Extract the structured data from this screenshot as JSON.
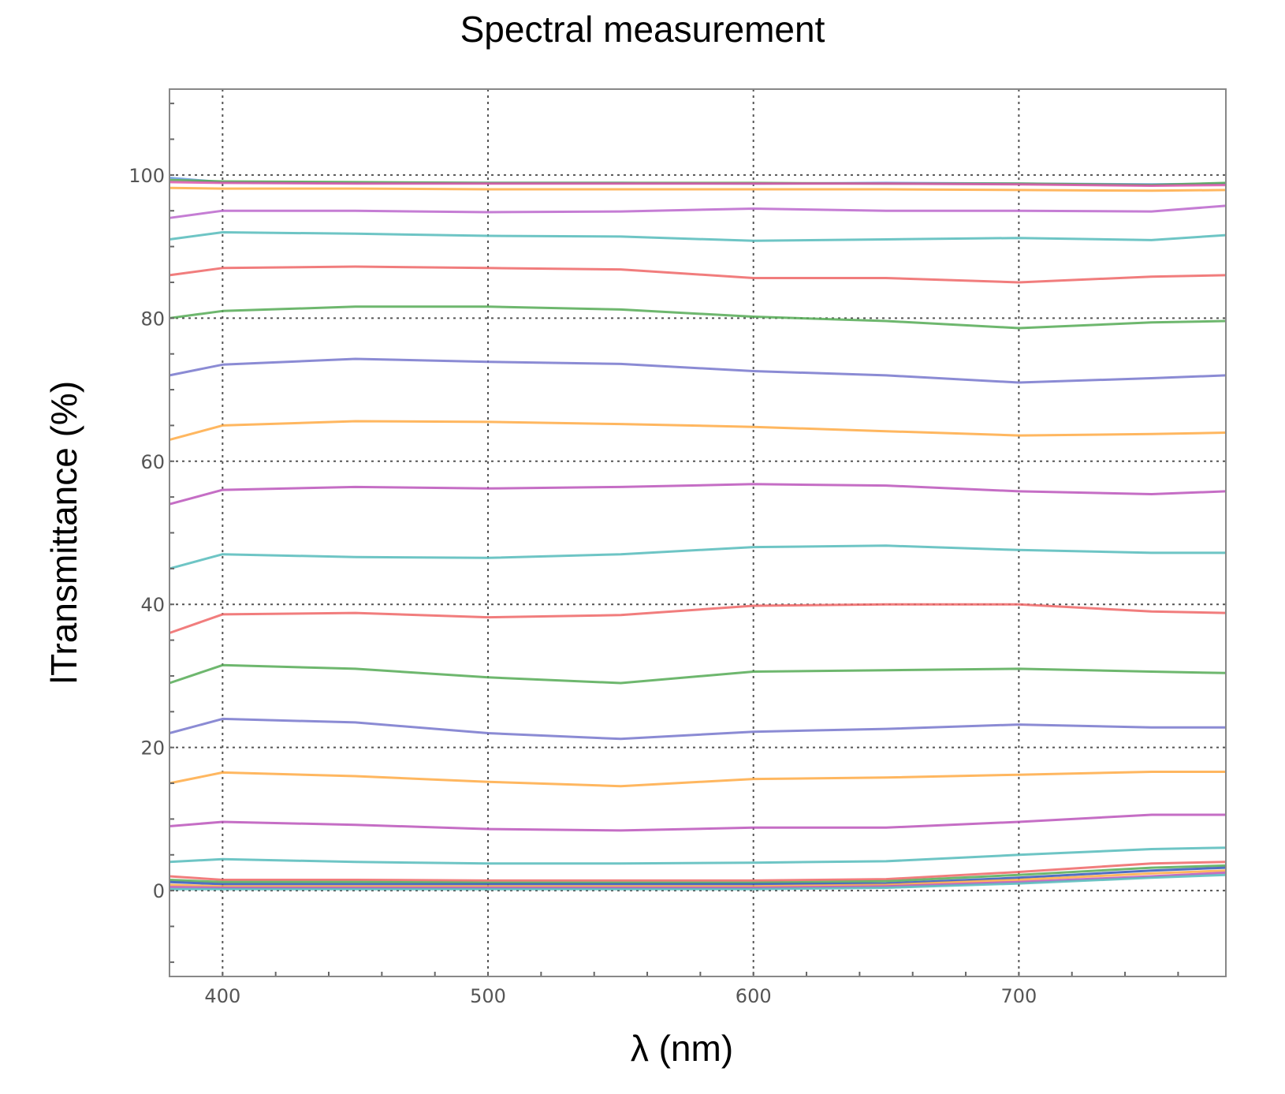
{
  "chart_data": {
    "type": "line",
    "title": "Spectral measurement",
    "xlabel": "λ (nm)",
    "ylabel": "lTransmittance (%)",
    "xlim": [
      380,
      778
    ],
    "ylim": [
      -12,
      112
    ],
    "xticks": [
      400,
      500,
      600,
      700
    ],
    "yticks": [
      0,
      20,
      40,
      60,
      80,
      100
    ],
    "grid": true,
    "x": [
      380,
      400,
      450,
      500,
      550,
      600,
      650,
      700,
      750,
      778
    ],
    "series": [
      {
        "color": "#6699dd",
        "values": [
          99.6,
          99.0,
          98.9,
          98.9,
          98.9,
          98.8,
          98.9,
          98.8,
          98.7,
          98.8
        ]
      },
      {
        "color": "#55aa55",
        "values": [
          99.3,
          99.1,
          99.0,
          98.9,
          98.9,
          98.9,
          98.8,
          98.8,
          98.6,
          98.9
        ]
      },
      {
        "color": "#dd55aa",
        "values": [
          99.0,
          98.9,
          98.8,
          98.8,
          98.8,
          98.8,
          98.8,
          98.7,
          98.5,
          98.6
        ]
      },
      {
        "color": "#ffaa44",
        "values": [
          98.2,
          98.1,
          98.1,
          98.0,
          98.0,
          98.0,
          98.0,
          97.9,
          97.8,
          97.9
        ]
      },
      {
        "color": "#bb66cc",
        "values": [
          94.0,
          95.0,
          95.0,
          94.8,
          94.9,
          95.3,
          95.0,
          95.0,
          94.9,
          95.7
        ]
      },
      {
        "color": "#55bbbb",
        "values": [
          91.0,
          92.0,
          91.8,
          91.5,
          91.4,
          90.8,
          91.0,
          91.2,
          90.9,
          91.6
        ]
      },
      {
        "color": "#ee6666",
        "values": [
          86.0,
          87.0,
          87.2,
          87.0,
          86.8,
          85.6,
          85.6,
          85.0,
          85.8,
          86.0
        ]
      },
      {
        "color": "#55aa55",
        "values": [
          80.0,
          81.0,
          81.6,
          81.6,
          81.2,
          80.2,
          79.6,
          78.6,
          79.4,
          79.6
        ]
      },
      {
        "color": "#7777cc",
        "values": [
          72.0,
          73.5,
          74.3,
          73.9,
          73.6,
          72.6,
          72.0,
          71.0,
          71.6,
          72.0
        ]
      },
      {
        "color": "#ffaa44",
        "values": [
          63.0,
          65.0,
          65.6,
          65.5,
          65.2,
          64.8,
          64.2,
          63.6,
          63.8,
          64.0
        ]
      },
      {
        "color": "#bb55bb",
        "values": [
          54.0,
          56.0,
          56.4,
          56.2,
          56.4,
          56.8,
          56.6,
          55.8,
          55.4,
          55.8
        ]
      },
      {
        "color": "#55bbbb",
        "values": [
          45.0,
          47.0,
          46.6,
          46.5,
          47.0,
          48.0,
          48.2,
          47.6,
          47.2,
          47.2
        ]
      },
      {
        "color": "#ee6666",
        "values": [
          36.0,
          38.6,
          38.8,
          38.2,
          38.5,
          39.8,
          40.0,
          40.0,
          39.0,
          38.8
        ]
      },
      {
        "color": "#55aa55",
        "values": [
          29.0,
          31.5,
          31.0,
          29.8,
          29.0,
          30.6,
          30.8,
          31.0,
          30.6,
          30.4
        ]
      },
      {
        "color": "#7777cc",
        "values": [
          22.0,
          24.0,
          23.5,
          22.0,
          21.2,
          22.2,
          22.6,
          23.2,
          22.8,
          22.8
        ]
      },
      {
        "color": "#ffaa44",
        "values": [
          15.0,
          16.5,
          16.0,
          15.2,
          14.6,
          15.6,
          15.8,
          16.2,
          16.6,
          16.6
        ]
      },
      {
        "color": "#bb55bb",
        "values": [
          9.0,
          9.6,
          9.2,
          8.6,
          8.4,
          8.8,
          8.8,
          9.6,
          10.6,
          10.6
        ]
      },
      {
        "color": "#55bbbb",
        "values": [
          4.0,
          4.4,
          4.0,
          3.8,
          3.8,
          3.9,
          4.1,
          5.0,
          5.8,
          6.0
        ]
      },
      {
        "color": "#ee6666",
        "values": [
          2.0,
          1.5,
          1.5,
          1.4,
          1.4,
          1.4,
          1.6,
          2.6,
          3.8,
          4.0
        ]
      },
      {
        "color": "#55aa55",
        "values": [
          1.5,
          1.2,
          1.2,
          1.1,
          1.1,
          1.1,
          1.3,
          2.2,
          3.2,
          3.5
        ]
      },
      {
        "color": "#3355bb",
        "values": [
          1.2,
          0.9,
          0.9,
          0.9,
          0.9,
          0.9,
          1.0,
          1.8,
          2.8,
          3.2
        ]
      },
      {
        "color": "#ffaa44",
        "values": [
          0.8,
          0.6,
          0.6,
          0.6,
          0.6,
          0.6,
          0.8,
          1.5,
          2.4,
          2.8
        ]
      },
      {
        "color": "#bb55bb",
        "values": [
          0.5,
          0.4,
          0.4,
          0.4,
          0.4,
          0.4,
          0.6,
          1.2,
          2.0,
          2.5
        ]
      },
      {
        "color": "#55bbbb",
        "values": [
          0.2,
          0.2,
          0.2,
          0.2,
          0.2,
          0.2,
          0.4,
          1.0,
          1.8,
          2.2
        ]
      }
    ]
  }
}
